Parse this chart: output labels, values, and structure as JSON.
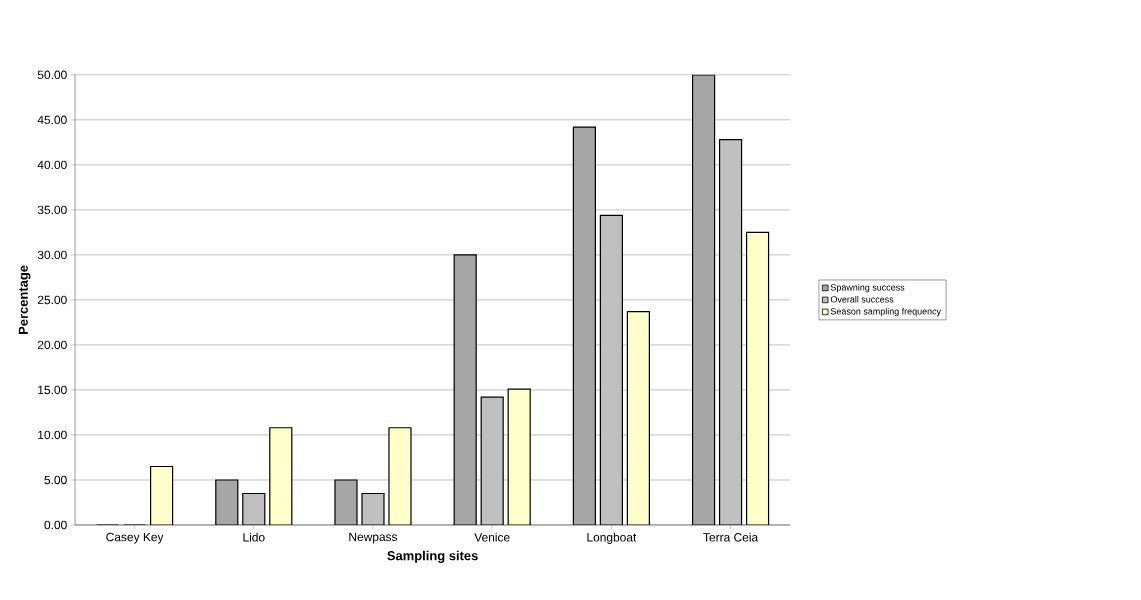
{
  "chart_data": {
    "type": "bar",
    "xlabel": "Sampling sites",
    "ylabel": "Percentage",
    "categories": [
      "Casey Key",
      "Lido",
      "Newpass",
      "Venice",
      "Longboat",
      "Terra Ceia"
    ],
    "series": [
      {
        "name": "Spawning success",
        "color": "#a6a6a6",
        "values": [
          0,
          5.0,
          5.0,
          30.0,
          44.2,
          50.0
        ]
      },
      {
        "name": "Overall success",
        "color": "#c0c0c0",
        "values": [
          0,
          3.5,
          3.5,
          14.2,
          34.4,
          42.8
        ]
      },
      {
        "name": "Season sampling frequency",
        "color": "#ffffcc",
        "values": [
          6.5,
          10.8,
          10.8,
          15.1,
          23.7,
          32.5
        ]
      }
    ],
    "ylim": [
      0,
      50
    ],
    "yticks": [
      {
        "value": 0,
        "label": "0.00"
      },
      {
        "value": 5,
        "label": "5.00"
      },
      {
        "value": 10,
        "label": "10.00"
      },
      {
        "value": 15,
        "label": "15.00"
      },
      {
        "value": 20,
        "label": "20.00"
      },
      {
        "value": 25,
        "label": "25.00"
      },
      {
        "value": 30,
        "label": "30.00"
      },
      {
        "value": 35,
        "label": "35.00"
      },
      {
        "value": 40,
        "label": "40.00"
      },
      {
        "value": 45,
        "label": "45.00"
      },
      {
        "value": 50,
        "label": "50.00"
      }
    ],
    "grid": "y",
    "legend": "right"
  }
}
